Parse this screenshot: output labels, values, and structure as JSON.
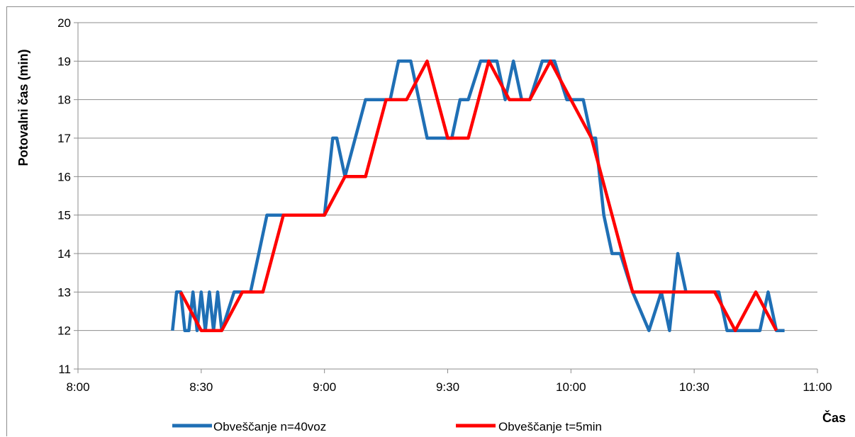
{
  "chart_data": {
    "type": "line",
    "title": "",
    "xlabel": "Čas",
    "ylabel": "Potovalni čas (min)",
    "x_ticks": [
      "8:00",
      "8:30",
      "9:00",
      "9:30",
      "10:00",
      "10:30",
      "11:00"
    ],
    "xlim_minutes_after_8": [
      0,
      180
    ],
    "y_ticks": [
      11,
      12,
      13,
      14,
      15,
      16,
      17,
      18,
      19,
      20
    ],
    "ylim": [
      11,
      20
    ],
    "grid": "horizontal",
    "legend_position": "bottom",
    "series": [
      {
        "name": "Obveščanje n=40voz",
        "color": "#1f6fb5",
        "points": [
          [
            "8:23",
            12
          ],
          [
            "8:24",
            13
          ],
          [
            "8:25",
            13
          ],
          [
            "8:26",
            12
          ],
          [
            "8:27",
            12
          ],
          [
            "8:28",
            13
          ],
          [
            "8:29",
            12
          ],
          [
            "8:30",
            13
          ],
          [
            "8:31",
            12
          ],
          [
            "8:32",
            13
          ],
          [
            "8:33",
            12
          ],
          [
            "8:34",
            13
          ],
          [
            "8:35",
            12
          ],
          [
            "8:38",
            13
          ],
          [
            "8:40",
            13
          ],
          [
            "8:42",
            13
          ],
          [
            "8:44",
            14
          ],
          [
            "8:46",
            15
          ],
          [
            "8:48",
            15
          ],
          [
            "8:58",
            15
          ],
          [
            "9:00",
            15
          ],
          [
            "9:02",
            17
          ],
          [
            "9:03",
            17
          ],
          [
            "9:05",
            16
          ],
          [
            "9:10",
            18
          ],
          [
            "9:13",
            18
          ],
          [
            "9:16",
            18
          ],
          [
            "9:18",
            19
          ],
          [
            "9:21",
            19
          ],
          [
            "9:25",
            17
          ],
          [
            "9:28",
            17
          ],
          [
            "9:31",
            17
          ],
          [
            "9:33",
            18
          ],
          [
            "9:35",
            18
          ],
          [
            "9:38",
            19
          ],
          [
            "9:40",
            19
          ],
          [
            "9:42",
            19
          ],
          [
            "9:44",
            18
          ],
          [
            "9:46",
            19
          ],
          [
            "9:48",
            18
          ],
          [
            "9:50",
            18
          ],
          [
            "9:53",
            19
          ],
          [
            "9:56",
            19
          ],
          [
            "9:59",
            18
          ],
          [
            "10:01",
            18
          ],
          [
            "10:03",
            18
          ],
          [
            "10:05",
            17
          ],
          [
            "10:06",
            17
          ],
          [
            "10:08",
            15
          ],
          [
            "10:10",
            14
          ],
          [
            "10:12",
            14
          ],
          [
            "10:15",
            13
          ],
          [
            "10:19",
            12
          ],
          [
            "10:22",
            13
          ],
          [
            "10:24",
            12
          ],
          [
            "10:26",
            14
          ],
          [
            "10:28",
            13
          ],
          [
            "10:32",
            13
          ],
          [
            "10:36",
            13
          ],
          [
            "10:38",
            12
          ],
          [
            "10:43",
            12
          ],
          [
            "10:46",
            12
          ],
          [
            "10:48",
            13
          ],
          [
            "10:50",
            12
          ],
          [
            "10:52",
            12
          ]
        ]
      },
      {
        "name": "Obveščanje t=5min",
        "color": "#ff0000",
        "points": [
          [
            "8:25",
            13
          ],
          [
            "8:30",
            12
          ],
          [
            "8:35",
            12
          ],
          [
            "8:40",
            13
          ],
          [
            "8:45",
            13
          ],
          [
            "8:50",
            15
          ],
          [
            "8:55",
            15
          ],
          [
            "9:00",
            15
          ],
          [
            "9:05",
            16
          ],
          [
            "9:10",
            16
          ],
          [
            "9:15",
            18
          ],
          [
            "9:20",
            18
          ],
          [
            "9:25",
            19
          ],
          [
            "9:30",
            17
          ],
          [
            "9:35",
            17
          ],
          [
            "9:40",
            19
          ],
          [
            "9:45",
            18
          ],
          [
            "9:50",
            18
          ],
          [
            "9:55",
            19
          ],
          [
            "10:00",
            18
          ],
          [
            "10:05",
            17
          ],
          [
            "10:10",
            15
          ],
          [
            "10:15",
            13
          ],
          [
            "10:20",
            13
          ],
          [
            "10:25",
            13
          ],
          [
            "10:30",
            13
          ],
          [
            "10:35",
            13
          ],
          [
            "10:40",
            12
          ],
          [
            "10:45",
            13
          ],
          [
            "10:50",
            12
          ]
        ]
      }
    ]
  }
}
